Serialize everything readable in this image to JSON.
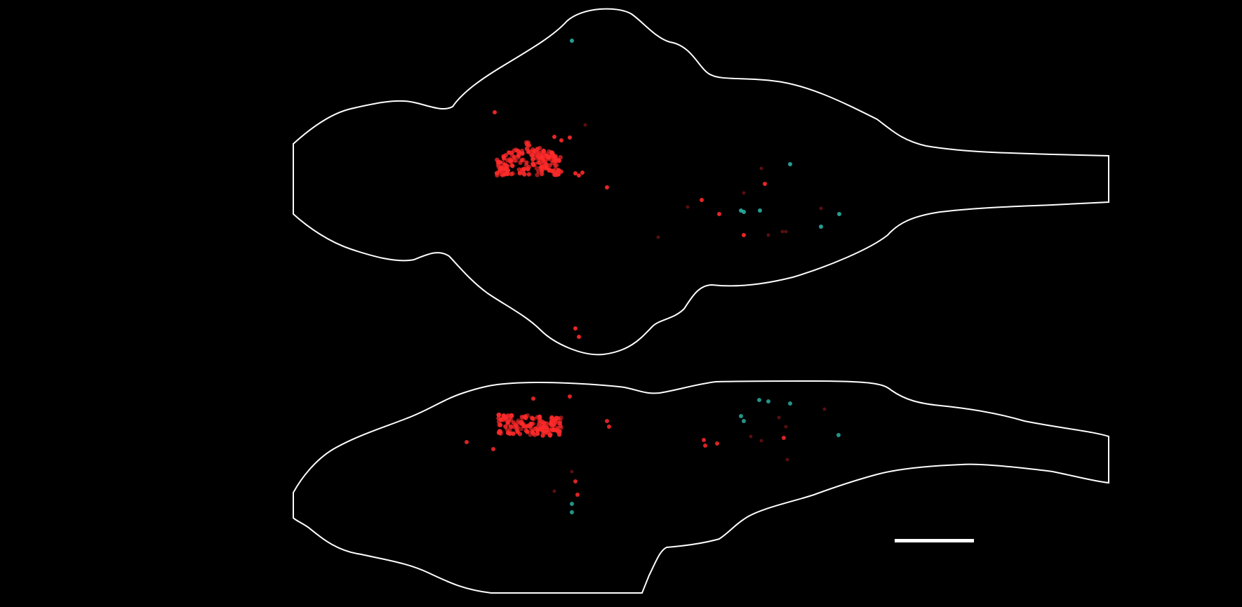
{
  "image": {
    "background": "#000000",
    "outline_color": "#ffffff",
    "colors": {
      "red_cells": "#ff2a2a",
      "cyan_cells": "#2ec4b6"
    },
    "views": [
      {
        "name": "dorsal-view",
        "outline": "brain-outline-dorsal"
      },
      {
        "name": "lateral-view",
        "outline": "brain-outline-lateral"
      }
    ],
    "scale_bar": {
      "label": ""
    }
  }
}
